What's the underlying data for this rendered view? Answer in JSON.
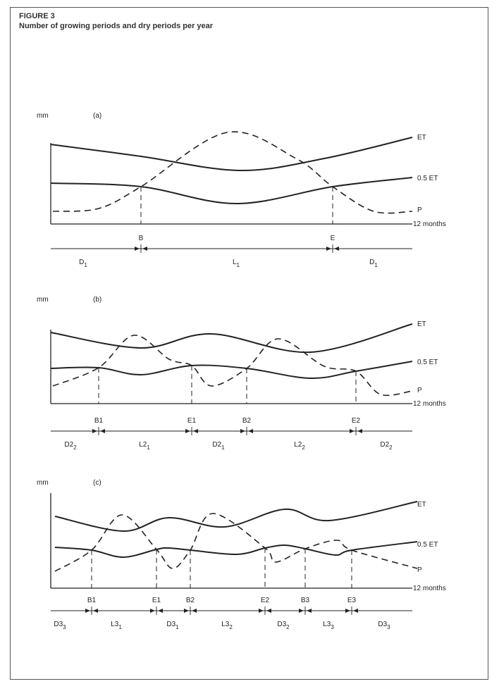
{
  "figure": {
    "number": "FIGURE 3",
    "title": "Number of growing periods and dry periods per year"
  },
  "axis_labels": {
    "y_unit": "mm",
    "x_end": "12 months"
  },
  "curve_labels": {
    "et": "ET",
    "half_et": "0.5 ET",
    "p": "P"
  },
  "panels": [
    {
      "id": "(a)",
      "markers": [
        "B",
        "E"
      ],
      "periods": [
        {
          "main": "D",
          "sub": "1",
          "plain": "D1"
        },
        {
          "main": "L",
          "sub": "1",
          "plain": "L1"
        },
        {
          "main": "D",
          "sub": "1",
          "plain": "D1"
        }
      ]
    },
    {
      "id": "(b)",
      "markers": [
        "B1",
        "E1",
        "B2",
        "E2"
      ],
      "periods": [
        {
          "main": "D2",
          "sub": "2"
        },
        {
          "main": "L2",
          "sub": "1"
        },
        {
          "main": "D2",
          "sub": "1"
        },
        {
          "main": "L2",
          "sub": "2"
        },
        {
          "main": "D2",
          "sub": "2"
        }
      ]
    },
    {
      "id": "(c)",
      "markers": [
        "B1",
        "E1",
        "B2",
        "E2",
        "B3",
        "E3"
      ],
      "periods": [
        {
          "main": "D3",
          "sub": "3"
        },
        {
          "main": "L3",
          "sub": "1"
        },
        {
          "main": "D3",
          "sub": "1"
        },
        {
          "main": "L3",
          "sub": "2"
        },
        {
          "main": "D3",
          "sub": "2"
        },
        {
          "main": "L3",
          "sub": "3"
        },
        {
          "main": "D3",
          "sub": "3"
        }
      ]
    }
  ]
}
